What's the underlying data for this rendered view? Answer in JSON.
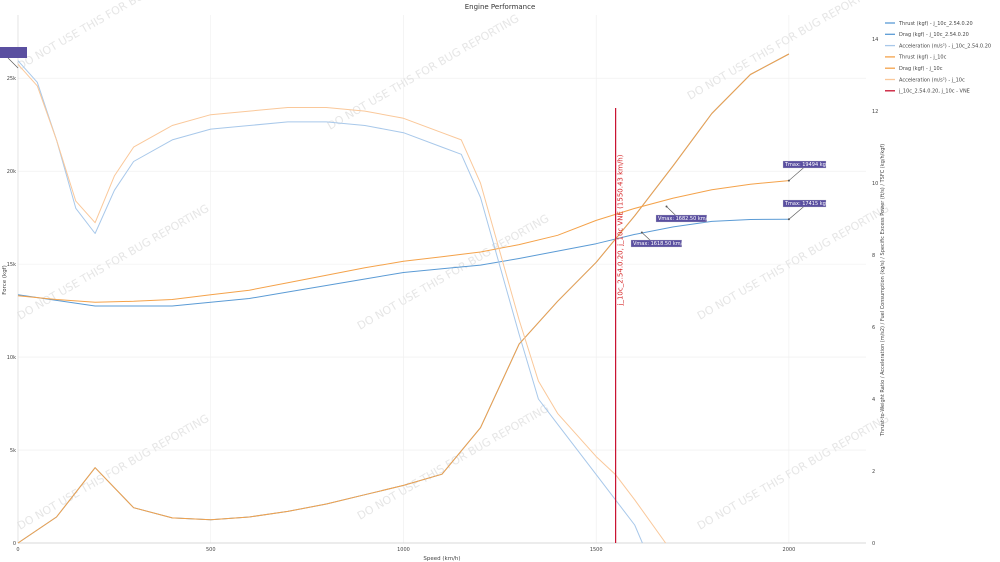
{
  "chart_data": {
    "type": "line",
    "title": "Engine Performance",
    "xlabel": "Speed (km/h)",
    "ylabel": "Force (kgf)",
    "y2label": "Thrust-to-Weight Ratio / Acceleration (m/s2) / Fuel Consumption (kg/s) / Specific Excess Power (ft/s) / TSFC (kg/h/kgf)",
    "xlim": [
      0,
      2200
    ],
    "ylim": [
      0,
      28400
    ],
    "y2lim": [
      0,
      14.67
    ],
    "x_ticks": [
      0,
      500,
      1000,
      1500,
      2000
    ],
    "x_tick_labels": [
      "0",
      "500",
      "1000",
      "1500",
      "2000"
    ],
    "y_ticks": [
      0,
      5000,
      10000,
      15000,
      20000,
      25000
    ],
    "y_tick_labels": [
      "0",
      "5k",
      "10k",
      "15k",
      "20k",
      "25k"
    ],
    "y2_ticks": [
      0,
      2,
      4,
      6,
      8,
      10,
      12,
      14
    ],
    "y2_tick_labels": [
      "0",
      "2",
      "4",
      "6",
      "8",
      "10",
      "12",
      "14"
    ],
    "grid": true,
    "legend_position": "right-top",
    "series": [
      {
        "name": "Thrust (kgf) - j_10c_2.54.0.20",
        "color": "#5b9bd5",
        "axis": "y",
        "x": [
          0,
          100,
          200,
          300,
          400,
          500,
          600,
          700,
          800,
          900,
          1000,
          1100,
          1200,
          1300,
          1400,
          1500,
          1600,
          1700,
          1800,
          1900,
          2000
        ],
        "y": [
          13350,
          13050,
          12750,
          12750,
          12750,
          12950,
          13150,
          13500,
          13850,
          14200,
          14550,
          14750,
          14950,
          15300,
          15700,
          16100,
          16600,
          17000,
          17300,
          17400,
          17415
        ]
      },
      {
        "name": "Drag (kgf) - j_10c_2.54.0.20",
        "color": "#5b9bd5",
        "axis": "y",
        "x": [
          0,
          100,
          200,
          300,
          400,
          500,
          600,
          700,
          800,
          900,
          1000,
          1100,
          1200,
          1300,
          1400,
          1500,
          1600,
          1700,
          1800,
          1900,
          2000
        ],
        "y": [
          0,
          1400,
          4050,
          1900,
          1350,
          1250,
          1400,
          1700,
          2100,
          2600,
          3100,
          3700,
          6200,
          10700,
          13000,
          15100,
          17600,
          20300,
          23100,
          25200,
          26300
        ]
      },
      {
        "name": "Acceleration (m/s²) - j_10c_2.54.0.20",
        "color": "#a8c8ea",
        "axis": "y2",
        "x": [
          0,
          50,
          100,
          150,
          200,
          250,
          300,
          400,
          500,
          600,
          700,
          800,
          900,
          1000,
          1100,
          1150,
          1200,
          1300,
          1350,
          1400,
          1500,
          1600,
          1620
        ],
        "y": [
          13.4,
          12.8,
          11.2,
          9.3,
          8.6,
          9.8,
          10.6,
          11.2,
          11.5,
          11.6,
          11.7,
          11.7,
          11.6,
          11.4,
          11.0,
          10.8,
          9.6,
          5.8,
          4.0,
          3.3,
          1.9,
          0.5,
          0.0
        ]
      },
      {
        "name": "Thrust (kgf) - j_10c",
        "color": "#f4a24a",
        "axis": "y",
        "x": [
          0,
          100,
          200,
          300,
          400,
          500,
          600,
          700,
          800,
          900,
          1000,
          1100,
          1200,
          1300,
          1400,
          1500,
          1600,
          1700,
          1800,
          1900,
          2000
        ],
        "y": [
          13300,
          13100,
          12950,
          13000,
          13100,
          13350,
          13600,
          14000,
          14400,
          14800,
          15150,
          15400,
          15650,
          16050,
          16550,
          17350,
          18000,
          18550,
          19000,
          19300,
          19494
        ]
      },
      {
        "name": "Drag (kgf) - j_10c",
        "color": "#f4a24a",
        "axis": "y",
        "x": [
          0,
          100,
          200,
          300,
          400,
          500,
          600,
          700,
          800,
          900,
          1000,
          1100,
          1200,
          1300,
          1400,
          1500,
          1600,
          1700,
          1800,
          1900,
          2000
        ],
        "y": [
          0,
          1400,
          4050,
          1900,
          1350,
          1250,
          1400,
          1700,
          2100,
          2600,
          3100,
          3700,
          6200,
          10700,
          13000,
          15100,
          17600,
          20300,
          23100,
          25200,
          26300
        ]
      },
      {
        "name": "Acceleration (m/s²) - j_10c",
        "color": "#fac89a",
        "axis": "y2",
        "x": [
          0,
          50,
          100,
          150,
          200,
          250,
          300,
          400,
          500,
          600,
          700,
          800,
          900,
          1000,
          1100,
          1150,
          1200,
          1300,
          1350,
          1400,
          1500,
          1550,
          1600,
          1680
        ],
        "y": [
          13.3,
          12.7,
          11.2,
          9.5,
          8.9,
          10.2,
          11.0,
          11.6,
          11.9,
          12.0,
          12.1,
          12.1,
          12.0,
          11.8,
          11.4,
          11.2,
          10.0,
          6.2,
          4.5,
          3.6,
          2.4,
          1.9,
          1.2,
          0.0
        ]
      },
      {
        "name": "j_10c_2.54.0.20, j_10c - VNE",
        "color": "#c8102e",
        "type": "vline",
        "x": 1550.43
      }
    ],
    "annotations": [
      {
        "text": "Tmax: 19494 kgf",
        "x": 2000,
        "y": 19494
      },
      {
        "text": "Tmax: 17415 kgf",
        "x": 2000,
        "y": 17415
      },
      {
        "text": "Vmax: 1682.50 km/h",
        "x": 1682.5,
        "y": 18100
      },
      {
        "text": "Vmax: 1618.50 km/h",
        "x": 1618.5,
        "y": 16700
      },
      {
        "text": "j_10c_2.54.0.20, j_10c VNE (1550.43 km/h)",
        "x": 1550.43,
        "orientation": "vertical"
      }
    ],
    "watermark": "DO NOT USE THIS FOR BUG REPORTING"
  },
  "legend": {
    "items": [
      {
        "label": "Thrust (kgf) - j_10c_2.54.0.20",
        "color": "#5b9bd5"
      },
      {
        "label": "Drag (kgf) - j_10c_2.54.0.20",
        "color": "#5b9bd5"
      },
      {
        "label": "Acceleration (m/s²) - j_10c_2.54.0.20",
        "color": "#a8c8ea"
      },
      {
        "label": "Thrust (kgf) - j_10c",
        "color": "#f4a24a"
      },
      {
        "label": "Drag (kgf) - j_10c",
        "color": "#f4a24a"
      },
      {
        "label": "Acceleration (m/s²) - j_10c",
        "color": "#fac89a"
      },
      {
        "label": "j_10c_2.54.0.20, j_10c - VNE",
        "color": "#c8102e"
      }
    ]
  }
}
